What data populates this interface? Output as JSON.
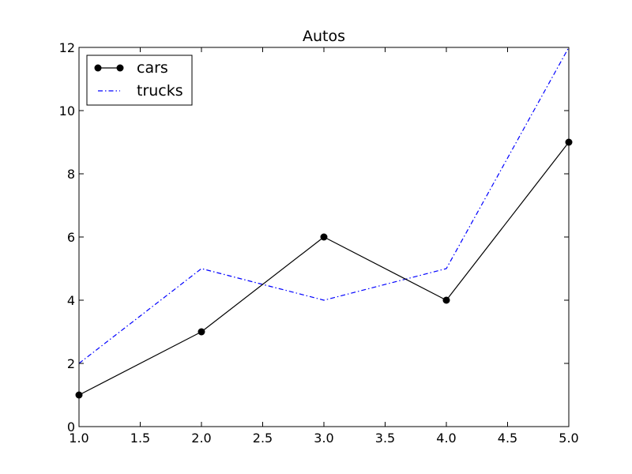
{
  "chart_data": {
    "type": "line",
    "title": "Autos",
    "xlabel": "",
    "ylabel": "",
    "xlim": [
      1.0,
      5.0
    ],
    "ylim": [
      0,
      12
    ],
    "x_ticks": [
      "1.0",
      "1.5",
      "2.0",
      "2.5",
      "3.0",
      "3.5",
      "4.0",
      "4.5",
      "5.0"
    ],
    "y_ticks": [
      "0",
      "2",
      "4",
      "6",
      "8",
      "10",
      "12"
    ],
    "x": [
      1,
      2,
      3,
      4,
      5
    ],
    "grid": false,
    "legend_position": "top-left",
    "series": [
      {
        "name": "cars",
        "values": [
          1,
          3,
          6,
          4,
          9
        ],
        "color": "#000000",
        "line_style": "solid",
        "marker": "circle"
      },
      {
        "name": "trucks",
        "values": [
          2,
          5,
          4,
          5,
          12
        ],
        "color": "#0000ff",
        "line_style": "dash-dot",
        "marker": "none"
      }
    ]
  }
}
